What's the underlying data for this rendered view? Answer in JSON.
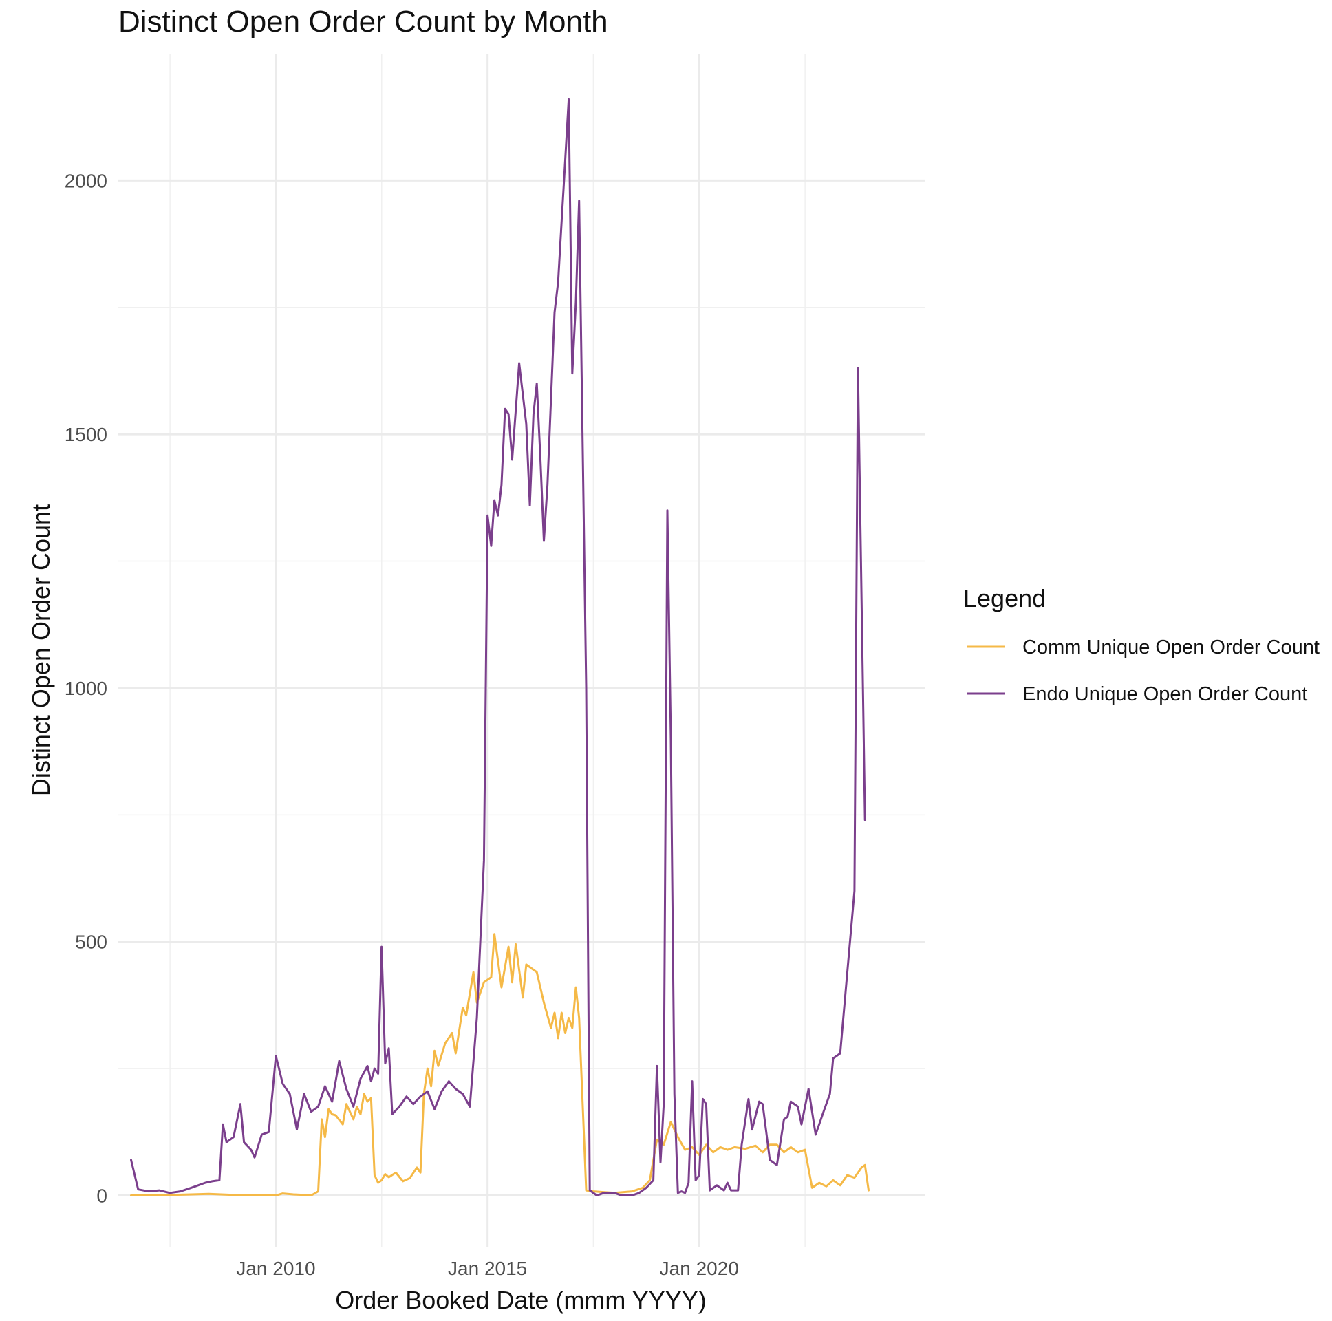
{
  "chart_data": {
    "type": "line",
    "title": "Distinct Open Order Count by Month",
    "xlabel": "Order Booked Date (mmm YYYY)",
    "ylabel": "Distinct Open Order Count",
    "x_type": "date",
    "xlim": [
      "2006-04-13",
      "2025-04-29"
    ],
    "ylim": [
      -101,
      2250
    ],
    "x_ticks": [
      {
        "value": "2010-01-01",
        "label": "Jan 2010"
      },
      {
        "value": "2015-01-01",
        "label": "Jan 2015"
      },
      {
        "value": "2020-01-01",
        "label": "Jan 2020"
      }
    ],
    "x_minor_ticks": [
      "2007-07-03",
      "2012-07-02",
      "2017-07-02",
      "2022-07-02"
    ],
    "y_ticks": [
      0,
      500,
      1000,
      1500,
      2000
    ],
    "y_minor_ticks": [
      250,
      750,
      1250,
      1750
    ],
    "grid": true,
    "legend": {
      "title": "Legend",
      "position": "right"
    },
    "series": [
      {
        "name": "Comm Unique Open Order Count",
        "color": "#F5B947",
        "points": [
          [
            "2006-08-01",
            0
          ],
          [
            "2007-01-01",
            0
          ],
          [
            "2008-01-01",
            2
          ],
          [
            "2008-06-01",
            3
          ],
          [
            "2009-01-01",
            1
          ],
          [
            "2009-06-01",
            0
          ],
          [
            "2010-01-01",
            0
          ],
          [
            "2010-03-01",
            4
          ],
          [
            "2010-06-01",
            2
          ],
          [
            "2010-09-01",
            1
          ],
          [
            "2010-11-01",
            0
          ],
          [
            "2011-01-01",
            8
          ],
          [
            "2011-02-01",
            150
          ],
          [
            "2011-03-01",
            115
          ],
          [
            "2011-04-01",
            170
          ],
          [
            "2011-05-01",
            160
          ],
          [
            "2011-06-01",
            158
          ],
          [
            "2011-08-01",
            140
          ],
          [
            "2011-09-01",
            180
          ],
          [
            "2011-10-01",
            165
          ],
          [
            "2011-11-01",
            150
          ],
          [
            "2011-12-01",
            175
          ],
          [
            "2012-01-01",
            160
          ],
          [
            "2012-02-01",
            200
          ],
          [
            "2012-03-01",
            185
          ],
          [
            "2012-04-01",
            192
          ],
          [
            "2012-05-01",
            40
          ],
          [
            "2012-06-01",
            25
          ],
          [
            "2012-07-01",
            30
          ],
          [
            "2012-08-01",
            42
          ],
          [
            "2012-09-01",
            36
          ],
          [
            "2012-11-01",
            45
          ],
          [
            "2013-01-01",
            28
          ],
          [
            "2013-03-01",
            34
          ],
          [
            "2013-05-01",
            55
          ],
          [
            "2013-06-01",
            45
          ],
          [
            "2013-07-01",
            200
          ],
          [
            "2013-08-01",
            250
          ],
          [
            "2013-09-01",
            215
          ],
          [
            "2013-10-01",
            285
          ],
          [
            "2013-11-01",
            255
          ],
          [
            "2014-01-01",
            300
          ],
          [
            "2014-03-01",
            320
          ],
          [
            "2014-04-01",
            280
          ],
          [
            "2014-06-01",
            370
          ],
          [
            "2014-07-01",
            355
          ],
          [
            "2014-09-01",
            440
          ],
          [
            "2014-10-01",
            380
          ],
          [
            "2014-12-01",
            420
          ],
          [
            "2015-02-01",
            430
          ],
          [
            "2015-03-01",
            515
          ],
          [
            "2015-05-01",
            410
          ],
          [
            "2015-07-01",
            490
          ],
          [
            "2015-08-01",
            420
          ],
          [
            "2015-09-01",
            495
          ],
          [
            "2015-11-01",
            390
          ],
          [
            "2015-12-01",
            455
          ],
          [
            "2016-03-01",
            440
          ],
          [
            "2016-05-01",
            380
          ],
          [
            "2016-07-01",
            330
          ],
          [
            "2016-08-01",
            360
          ],
          [
            "2016-09-01",
            310
          ],
          [
            "2016-10-01",
            360
          ],
          [
            "2016-11-01",
            320
          ],
          [
            "2016-12-01",
            350
          ],
          [
            "2017-01-01",
            330
          ],
          [
            "2017-02-01",
            410
          ],
          [
            "2017-03-01",
            350
          ],
          [
            "2017-05-01",
            10
          ],
          [
            "2017-07-01",
            8
          ],
          [
            "2018-01-01",
            5
          ],
          [
            "2018-06-01",
            8
          ],
          [
            "2018-09-01",
            15
          ],
          [
            "2018-11-01",
            30
          ],
          [
            "2019-01-01",
            110
          ],
          [
            "2019-03-01",
            100
          ],
          [
            "2019-05-01",
            145
          ],
          [
            "2019-07-01",
            115
          ],
          [
            "2019-09-01",
            90
          ],
          [
            "2019-11-01",
            95
          ],
          [
            "2020-01-01",
            80
          ],
          [
            "2020-03-01",
            100
          ],
          [
            "2020-05-01",
            85
          ],
          [
            "2020-07-01",
            95
          ],
          [
            "2020-09-01",
            90
          ],
          [
            "2020-11-01",
            95
          ],
          [
            "2021-02-01",
            92
          ],
          [
            "2021-05-01",
            98
          ],
          [
            "2021-07-01",
            85
          ],
          [
            "2021-09-01",
            100
          ],
          [
            "2021-11-01",
            100
          ],
          [
            "2022-01-01",
            85
          ],
          [
            "2022-03-01",
            95
          ],
          [
            "2022-05-01",
            85
          ],
          [
            "2022-07-01",
            90
          ],
          [
            "2022-09-01",
            15
          ],
          [
            "2022-11-01",
            25
          ],
          [
            "2023-01-01",
            18
          ],
          [
            "2023-03-01",
            30
          ],
          [
            "2023-05-01",
            20
          ],
          [
            "2023-07-01",
            40
          ],
          [
            "2023-09-01",
            35
          ],
          [
            "2023-11-01",
            55
          ],
          [
            "2023-12-01",
            60
          ],
          [
            "2024-01-01",
            10
          ]
        ]
      },
      {
        "name": "Endo Unique Open Order Count",
        "color": "#7B3F8C",
        "points": [
          [
            "2006-08-01",
            70
          ],
          [
            "2006-10-01",
            12
          ],
          [
            "2007-01-01",
            8
          ],
          [
            "2007-04-01",
            10
          ],
          [
            "2007-07-01",
            5
          ],
          [
            "2007-10-01",
            8
          ],
          [
            "2008-01-01",
            15
          ],
          [
            "2008-03-01",
            20
          ],
          [
            "2008-05-01",
            25
          ],
          [
            "2008-07-01",
            28
          ],
          [
            "2008-09-01",
            30
          ],
          [
            "2008-10-01",
            140
          ],
          [
            "2008-11-01",
            105
          ],
          [
            "2009-01-01",
            115
          ],
          [
            "2009-03-01",
            180
          ],
          [
            "2009-04-01",
            105
          ],
          [
            "2009-06-01",
            90
          ],
          [
            "2009-07-01",
            75
          ],
          [
            "2009-09-01",
            120
          ],
          [
            "2009-11-01",
            125
          ],
          [
            "2010-01-01",
            275
          ],
          [
            "2010-03-01",
            220
          ],
          [
            "2010-05-01",
            200
          ],
          [
            "2010-07-01",
            130
          ],
          [
            "2010-09-01",
            200
          ],
          [
            "2010-11-01",
            165
          ],
          [
            "2011-01-01",
            175
          ],
          [
            "2011-03-01",
            215
          ],
          [
            "2011-05-01",
            185
          ],
          [
            "2011-07-01",
            265
          ],
          [
            "2011-09-01",
            210
          ],
          [
            "2011-11-01",
            175
          ],
          [
            "2012-01-01",
            230
          ],
          [
            "2012-03-01",
            255
          ],
          [
            "2012-04-01",
            225
          ],
          [
            "2012-05-01",
            250
          ],
          [
            "2012-06-01",
            240
          ],
          [
            "2012-07-01",
            490
          ],
          [
            "2012-08-01",
            260
          ],
          [
            "2012-09-01",
            290
          ],
          [
            "2012-10-01",
            160
          ],
          [
            "2012-12-01",
            175
          ],
          [
            "2013-02-01",
            195
          ],
          [
            "2013-04-01",
            180
          ],
          [
            "2013-06-01",
            195
          ],
          [
            "2013-08-01",
            205
          ],
          [
            "2013-10-01",
            170
          ],
          [
            "2013-12-01",
            205
          ],
          [
            "2014-02-01",
            225
          ],
          [
            "2014-04-01",
            210
          ],
          [
            "2014-06-01",
            200
          ],
          [
            "2014-08-01",
            175
          ],
          [
            "2014-10-01",
            350
          ],
          [
            "2014-12-01",
            660
          ],
          [
            "2015-01-01",
            1340
          ],
          [
            "2015-02-01",
            1280
          ],
          [
            "2015-03-01",
            1370
          ],
          [
            "2015-04-01",
            1340
          ],
          [
            "2015-05-01",
            1400
          ],
          [
            "2015-06-01",
            1550
          ],
          [
            "2015-07-01",
            1540
          ],
          [
            "2015-08-01",
            1450
          ],
          [
            "2015-10-01",
            1640
          ],
          [
            "2015-12-01",
            1520
          ],
          [
            "2016-01-01",
            1360
          ],
          [
            "2016-02-01",
            1540
          ],
          [
            "2016-03-01",
            1600
          ],
          [
            "2016-04-01",
            1450
          ],
          [
            "2016-05-01",
            1290
          ],
          [
            "2016-06-01",
            1400
          ],
          [
            "2016-08-01",
            1740
          ],
          [
            "2016-09-01",
            1800
          ],
          [
            "2016-10-01",
            1920
          ],
          [
            "2016-11-01",
            2040
          ],
          [
            "2016-12-01",
            2160
          ],
          [
            "2017-01-01",
            1620
          ],
          [
            "2017-02-01",
            1760
          ],
          [
            "2017-03-01",
            1960
          ],
          [
            "2017-05-01",
            1000
          ],
          [
            "2017-06-01",
            10
          ],
          [
            "2017-08-01",
            0
          ],
          [
            "2017-10-01",
            5
          ],
          [
            "2018-01-01",
            5
          ],
          [
            "2018-03-01",
            0
          ],
          [
            "2018-06-01",
            0
          ],
          [
            "2018-08-01",
            5
          ],
          [
            "2018-10-01",
            15
          ],
          [
            "2018-12-01",
            30
          ],
          [
            "2019-01-01",
            255
          ],
          [
            "2019-02-01",
            65
          ],
          [
            "2019-03-01",
            180
          ],
          [
            "2019-04-01",
            1350
          ],
          [
            "2019-05-01",
            900
          ],
          [
            "2019-06-01",
            200
          ],
          [
            "2019-07-01",
            5
          ],
          [
            "2019-08-01",
            8
          ],
          [
            "2019-09-01",
            5
          ],
          [
            "2019-10-01",
            25
          ],
          [
            "2019-11-01",
            225
          ],
          [
            "2019-12-01",
            30
          ],
          [
            "2020-01-01",
            40
          ],
          [
            "2020-02-01",
            190
          ],
          [
            "2020-03-01",
            180
          ],
          [
            "2020-04-01",
            10
          ],
          [
            "2020-06-01",
            20
          ],
          [
            "2020-08-01",
            10
          ],
          [
            "2020-09-01",
            25
          ],
          [
            "2020-10-01",
            10
          ],
          [
            "2020-12-01",
            10
          ],
          [
            "2021-01-01",
            100
          ],
          [
            "2021-03-01",
            190
          ],
          [
            "2021-04-01",
            130
          ],
          [
            "2021-06-01",
            185
          ],
          [
            "2021-07-01",
            180
          ],
          [
            "2021-09-01",
            70
          ],
          [
            "2021-11-01",
            60
          ],
          [
            "2022-01-01",
            150
          ],
          [
            "2022-02-01",
            155
          ],
          [
            "2022-03-01",
            185
          ],
          [
            "2022-05-01",
            175
          ],
          [
            "2022-06-01",
            140
          ],
          [
            "2022-08-01",
            210
          ],
          [
            "2022-10-01",
            120
          ],
          [
            "2022-12-01",
            160
          ],
          [
            "2023-02-01",
            200
          ],
          [
            "2023-03-01",
            270
          ],
          [
            "2023-05-01",
            280
          ],
          [
            "2023-07-01",
            440
          ],
          [
            "2023-09-01",
            600
          ],
          [
            "2023-10-01",
            1630
          ],
          [
            "2023-12-01",
            740
          ]
        ]
      }
    ]
  }
}
